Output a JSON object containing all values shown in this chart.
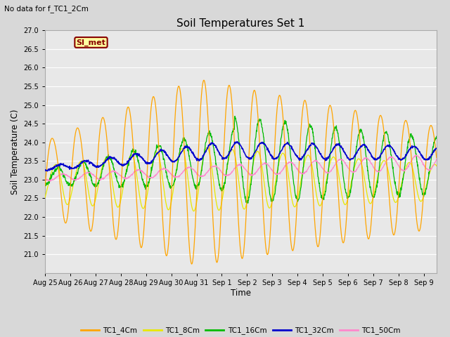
{
  "title": "Soil Temperatures Set 1",
  "subtitle": "No data for f_TC1_2Cm",
  "xlabel": "Time",
  "ylabel": "Soil Temperature (C)",
  "ylim": [
    20.5,
    27.0
  ],
  "yticks": [
    21.0,
    21.5,
    22.0,
    22.5,
    23.0,
    23.5,
    24.0,
    24.5,
    25.0,
    25.5,
    26.0,
    26.5,
    27.0
  ],
  "fig_bg_color": "#d8d8d8",
  "plot_bg_color": "#e8e8e8",
  "line_colors": {
    "TC1_4Cm": "#ffa500",
    "TC1_8Cm": "#e8e800",
    "TC1_16Cm": "#00bb00",
    "TC1_32Cm": "#0000cc",
    "TC1_50Cm": "#ff88cc"
  },
  "legend_label": "SI_met",
  "legend_box_color": "#ffffa0",
  "legend_box_border": "#880000",
  "xtick_labels": [
    "Aug 25",
    "Aug 26",
    "Aug 27",
    "Aug 28",
    "Aug 29",
    "Aug 30",
    "Aug 31",
    "Sep 1",
    "Sep 2",
    "Sep 3",
    "Sep 4",
    "Sep 5",
    "Sep 6",
    "Sep 7",
    "Sep 8",
    "Sep 9"
  ]
}
